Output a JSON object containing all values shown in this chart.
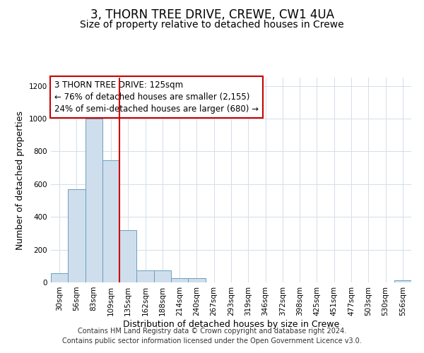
{
  "title": "3, THORN TREE DRIVE, CREWE, CW1 4UA",
  "subtitle": "Size of property relative to detached houses in Crewe",
  "xlabel": "Distribution of detached houses by size in Crewe",
  "ylabel": "Number of detached properties",
  "bin_labels": [
    "30sqm",
    "56sqm",
    "83sqm",
    "109sqm",
    "135sqm",
    "162sqm",
    "188sqm",
    "214sqm",
    "240sqm",
    "267sqm",
    "293sqm",
    "319sqm",
    "346sqm",
    "372sqm",
    "398sqm",
    "425sqm",
    "451sqm",
    "477sqm",
    "503sqm",
    "530sqm",
    "556sqm"
  ],
  "bar_values": [
    55,
    570,
    1000,
    745,
    320,
    75,
    75,
    25,
    25,
    0,
    0,
    0,
    0,
    0,
    0,
    0,
    0,
    0,
    0,
    0,
    15
  ],
  "bar_color": "#cfdeed",
  "bar_edgecolor": "#6a9fc0",
  "vline_color": "#cc0000",
  "vline_index": 3.5,
  "ylim": [
    0,
    1250
  ],
  "yticks": [
    0,
    200,
    400,
    600,
    800,
    1000,
    1200
  ],
  "annotation_text": "3 THORN TREE DRIVE: 125sqm\n← 76% of detached houses are smaller (2,155)\n24% of semi-detached houses are larger (680) →",
  "annotation_box_color": "#ffffff",
  "annotation_box_edgecolor": "#cc0000",
  "footer_line1": "Contains HM Land Registry data © Crown copyright and database right 2024.",
  "footer_line2": "Contains public sector information licensed under the Open Government Licence v3.0.",
  "title_fontsize": 12,
  "subtitle_fontsize": 10,
  "axis_label_fontsize": 9,
  "tick_fontsize": 7.5,
  "annotation_fontsize": 8.5,
  "footer_fontsize": 7,
  "background_color": "#ffffff",
  "grid_color": "#d4dde8"
}
